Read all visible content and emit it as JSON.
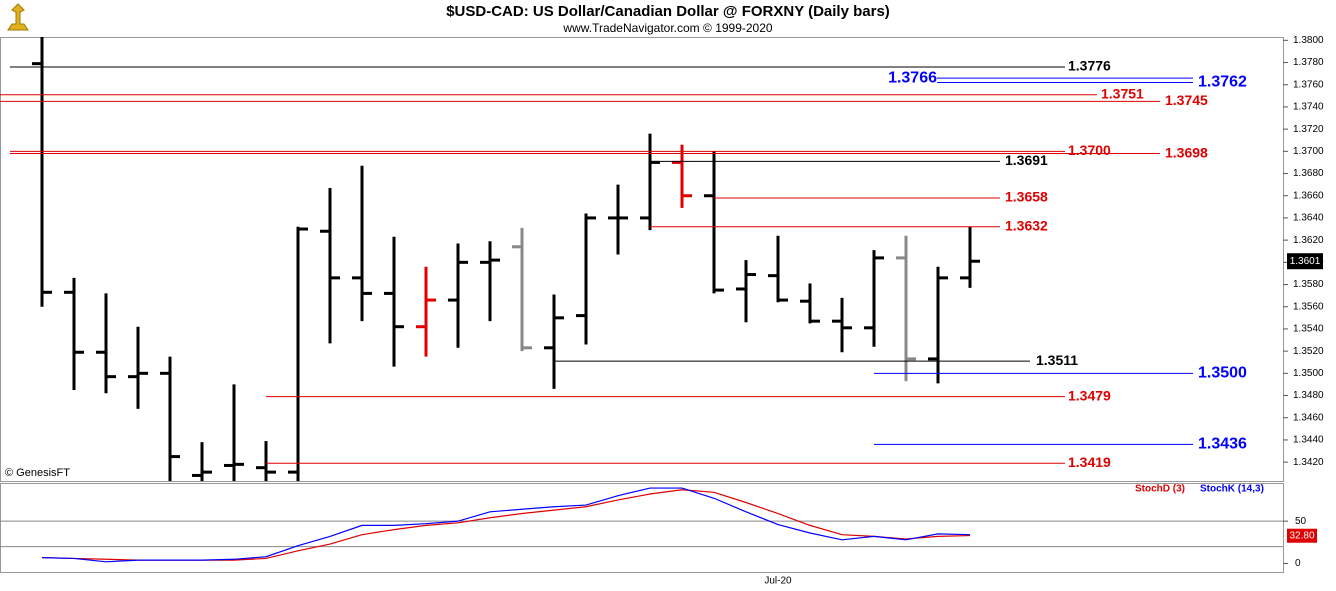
{
  "chart_data": [
    {
      "type": "ohlc",
      "title": "$USD-CAD:  US Dollar/Canadian Dollar @ FORXNY  (Daily bars)",
      "subtitle": "www.TradeNavigator.com © 1999-2020",
      "source": "© GenesisFT",
      "categories": [
        null,
        null,
        null,
        null,
        null,
        null,
        null,
        null,
        null,
        null,
        null,
        null,
        null,
        null,
        null,
        null,
        null,
        null,
        null,
        null,
        null,
        null,
        null,
        "Jul-20",
        null,
        null,
        null,
        null,
        null,
        null
      ],
      "open": [
        1.3779,
        1.3573,
        1.3519,
        1.3497,
        1.35,
        1.3408,
        1.3417,
        1.3415,
        1.3411,
        1.3628,
        1.3586,
        1.3572,
        1.3542,
        1.3566,
        1.36,
        1.3614,
        1.3523,
        1.3552,
        1.364,
        1.364,
        1.369,
        1.366,
        1.3576,
        1.3588,
        1.3565,
        1.3547,
        1.3541,
        1.3604,
        1.3513,
        1.3586
      ],
      "high": [
        1.3805,
        1.3586,
        1.3572,
        1.3542,
        1.3515,
        1.3438,
        1.349,
        1.3439,
        1.3632,
        1.3667,
        1.3687,
        1.3623,
        1.3596,
        1.3617,
        1.3619,
        1.3631,
        1.3571,
        1.3644,
        1.367,
        1.3716,
        1.3706,
        1.37,
        1.3602,
        1.3624,
        1.3581,
        1.3568,
        1.3611,
        1.3624,
        1.3596,
        1.3632
      ],
      "low": [
        1.356,
        1.3485,
        1.3482,
        1.3468,
        1.3398,
        1.3398,
        1.3398,
        1.3398,
        1.3398,
        1.3527,
        1.3547,
        1.3506,
        1.3515,
        1.3523,
        1.3547,
        1.352,
        1.3486,
        1.3526,
        1.3607,
        1.3629,
        1.3649,
        1.3572,
        1.3546,
        1.3564,
        1.3545,
        1.3519,
        1.3524,
        1.3493,
        1.3491,
        1.3577
      ],
      "close": [
        1.3573,
        1.3519,
        1.3497,
        1.35,
        1.3425,
        1.3411,
        1.3418,
        1.3411,
        1.363,
        1.3586,
        1.3572,
        1.3542,
        1.3566,
        1.36,
        1.3602,
        1.3523,
        1.355,
        1.364,
        1.364,
        1.369,
        1.366,
        1.3575,
        1.3589,
        1.3566,
        1.3547,
        1.3541,
        1.3604,
        1.3513,
        1.3586,
        1.3601
      ],
      "bar_colors": [
        "#000",
        "#000",
        "#000",
        "#000",
        "#000",
        "#000",
        "#000",
        "#000",
        "#000",
        "#000",
        "#000",
        "#000",
        "#e00000",
        "#000",
        "#000",
        "#888",
        "#000",
        "#000",
        "#000",
        "#000",
        "#e00000",
        "#000",
        "#000",
        "#000",
        "#000",
        "#000",
        "#000",
        "#888",
        "#000",
        "#000"
      ],
      "ylim": [
        1.3403,
        1.3803
      ],
      "yticks": [
        {
          "value": 1.342,
          "label": "1.3420"
        },
        {
          "value": 1.344,
          "label": "1.3440"
        },
        {
          "value": 1.346,
          "label": "1.3460"
        },
        {
          "value": 1.348,
          "label": "1.3480"
        },
        {
          "value": 1.35,
          "label": "1.3500"
        },
        {
          "value": 1.352,
          "label": "1.3520"
        },
        {
          "value": 1.354,
          "label": "1.3540"
        },
        {
          "value": 1.356,
          "label": "1.3560"
        },
        {
          "value": 1.358,
          "label": "1.3580"
        },
        {
          "value": 1.36,
          "label": "1.3600"
        },
        {
          "value": 1.362,
          "label": "1.3620"
        },
        {
          "value": 1.364,
          "label": "1.3640"
        },
        {
          "value": 1.366,
          "label": "1.3660"
        },
        {
          "value": 1.368,
          "label": "1.3680"
        },
        {
          "value": 1.37,
          "label": "1.3700"
        },
        {
          "value": 1.372,
          "label": "1.3720"
        },
        {
          "value": 1.374,
          "label": "1.3740"
        },
        {
          "value": 1.376,
          "label": "1.3760"
        },
        {
          "value": 1.378,
          "label": "1.3780"
        },
        {
          "value": 1.38,
          "label": "1.3800"
        }
      ],
      "levels": [
        {
          "value": 1.3776,
          "color": "#000"
        },
        {
          "value": 1.3766,
          "color": "#0000ff"
        },
        {
          "value": 1.3762,
          "color": "#0000ff"
        },
        {
          "value": 1.3751,
          "color": "#e00000"
        },
        {
          "value": 1.3745,
          "color": "#e00000"
        },
        {
          "value": 1.37,
          "label": "1.3700",
          "color": "#e00000"
        },
        {
          "value": 1.3698,
          "color": "#e00000"
        },
        {
          "value": 1.3691,
          "color": "#000"
        },
        {
          "value": 1.3658,
          "color": "#e00000"
        },
        {
          "value": 1.3632,
          "color": "#e00000"
        },
        {
          "value": 1.3511,
          "color": "#000"
        },
        {
          "value": 1.35,
          "label": "1.3500",
          "color": "#0000ff"
        },
        {
          "value": 1.3479,
          "color": "#e00000"
        },
        {
          "value": 1.3436,
          "color": "#0000ff"
        },
        {
          "value": 1.3419,
          "color": "#e00000"
        }
      ],
      "last_price": 1.3601
    },
    {
      "type": "line",
      "series": [
        {
          "name": "StochD (3)",
          "color": "#e00000",
          "values": [
            7,
            6,
            5,
            4,
            4,
            4,
            4,
            6,
            15,
            23,
            34,
            40,
            45,
            48,
            54,
            59,
            63,
            67,
            75,
            82,
            87,
            84,
            72,
            59,
            45,
            34,
            32,
            29,
            32,
            33
          ]
        },
        {
          "name": "StochK (14,3)",
          "color": "#0000ff",
          "values": [
            7,
            6,
            2,
            4,
            4,
            4,
            5,
            8,
            21,
            32,
            45,
            45,
            47,
            50,
            61,
            64,
            67,
            69,
            80,
            89,
            89,
            77,
            61,
            46,
            36,
            28,
            32,
            28,
            35,
            34
          ]
        }
      ],
      "ylim": [
        -10,
        95
      ],
      "yticks": [
        0,
        50
      ],
      "reference_lines": [
        20,
        50
      ],
      "last_value": {
        "value": 32.8,
        "label": "32.80"
      }
    }
  ]
}
